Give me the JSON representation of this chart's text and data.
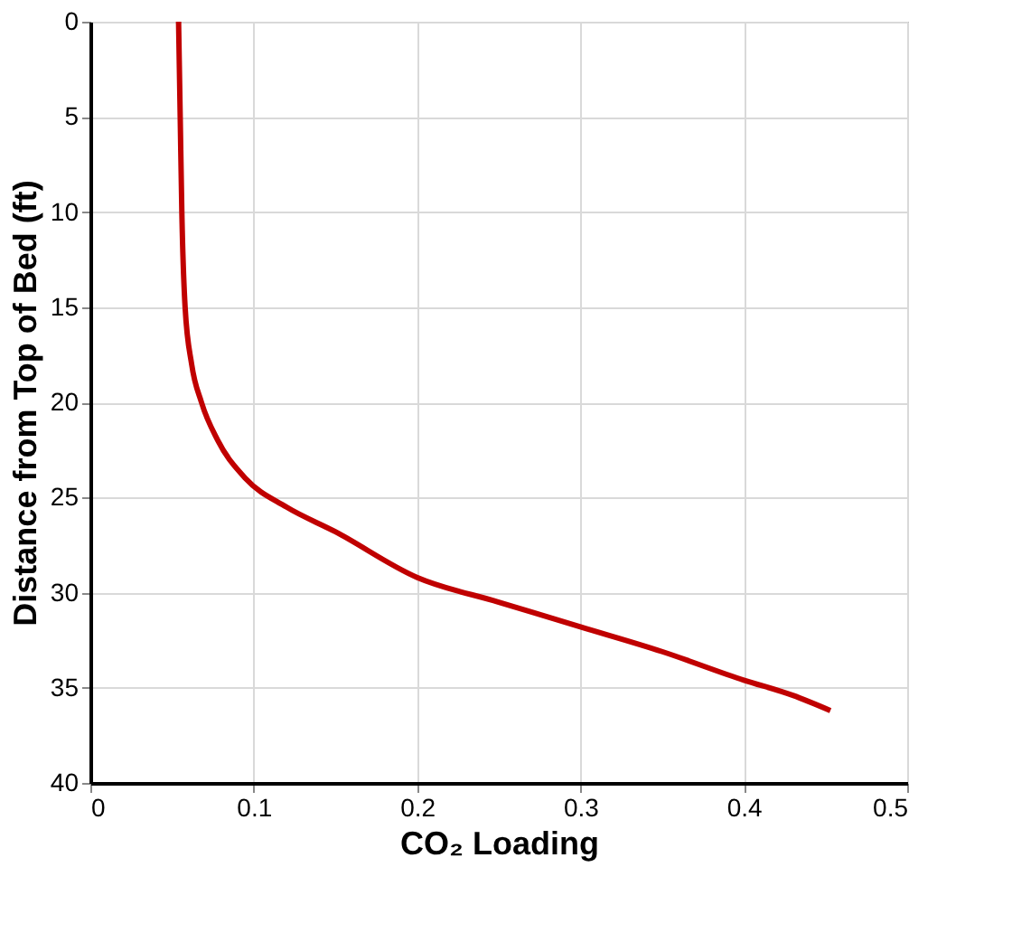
{
  "chart_data": {
    "type": "line",
    "xlabel": "CO₂ Loading",
    "ylabel": "Distance from Top of Bed (ft)",
    "xlim": [
      0,
      0.5
    ],
    "xticks": [
      0,
      0.1,
      0.2,
      0.3,
      0.4,
      0.5
    ],
    "ylim": [
      40,
      0
    ],
    "yticks": [
      0,
      5,
      10,
      15,
      20,
      25,
      30,
      35,
      40
    ],
    "grid": true,
    "marker": "none",
    "line_style": "solid",
    "series": [
      {
        "color": "#c00000",
        "x": [
          0.054,
          0.055,
          0.056,
          0.058,
          0.062,
          0.068,
          0.078,
          0.095,
          0.12,
          0.15,
          0.2,
          0.25,
          0.3,
          0.35,
          0.4,
          0.43,
          0.453
        ],
        "values": [
          0,
          5,
          10,
          15,
          18,
          20,
          22,
          24,
          25.5,
          26.8,
          29.2,
          30.5,
          31.8,
          33.1,
          34.6,
          35.4,
          36.2
        ]
      }
    ]
  }
}
